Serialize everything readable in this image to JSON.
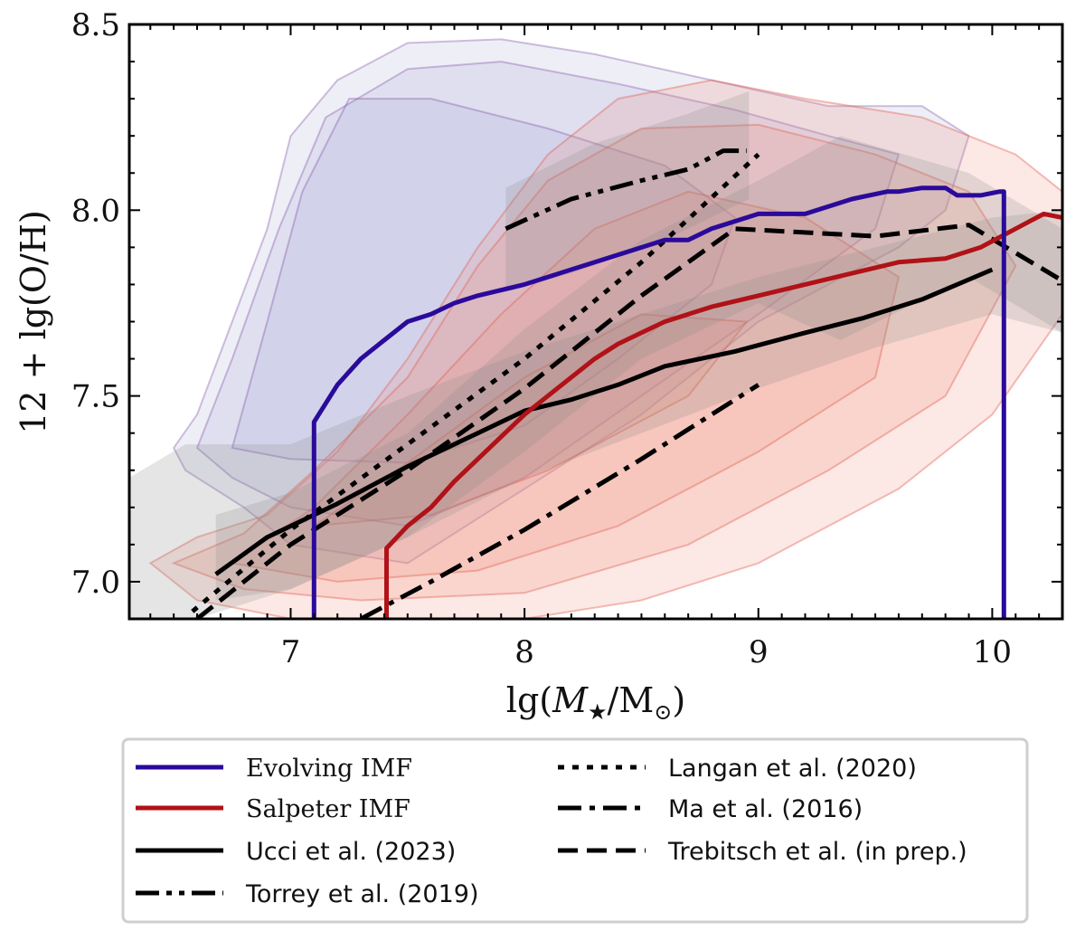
{
  "chart_data": {
    "type": "line",
    "title": "",
    "xlabel": "lg(M★/M⊙)",
    "ylabel": "12 + lg(O/H)",
    "xlim": [
      6.31,
      10.3
    ],
    "ylim": [
      6.9,
      8.5
    ],
    "xticks": [
      7,
      8,
      9,
      10
    ],
    "xtick_labels": [
      "7",
      "8",
      "9",
      "10"
    ],
    "yticks": [
      7.0,
      7.5,
      8.0,
      8.5
    ],
    "ytick_labels": [
      "7.0",
      "7.5",
      "8.0",
      "8.5"
    ],
    "grid": false,
    "legend_position": "below-plot",
    "series": [
      {
        "name": "Evolving IMF",
        "color": "#2a0a9a",
        "style": "solid",
        "x": [
          7.1,
          7.1,
          7.2,
          7.3,
          7.4,
          7.5,
          7.6,
          7.7,
          7.8,
          8.0,
          8.2,
          8.4,
          8.6,
          8.7,
          8.8,
          9.0,
          9.2,
          9.4,
          9.55,
          9.6,
          9.7,
          9.8,
          9.85,
          9.95,
          10.03,
          10.05,
          10.05
        ],
        "y": [
          6.9,
          7.43,
          7.53,
          7.6,
          7.65,
          7.7,
          7.72,
          7.75,
          7.77,
          7.8,
          7.84,
          7.88,
          7.92,
          7.92,
          7.95,
          7.99,
          7.99,
          8.03,
          8.05,
          8.05,
          8.06,
          8.06,
          8.04,
          8.04,
          8.05,
          8.05,
          6.9
        ]
      },
      {
        "name": "Salpeter IMF",
        "color": "#b01218",
        "style": "solid",
        "x": [
          7.41,
          7.41,
          7.5,
          7.6,
          7.7,
          7.8,
          7.9,
          8.0,
          8.1,
          8.2,
          8.3,
          8.4,
          8.5,
          8.6,
          8.8,
          9.0,
          9.2,
          9.4,
          9.6,
          9.8,
          9.95,
          10.1,
          10.22,
          10.3
        ],
        "y": [
          6.9,
          7.09,
          7.15,
          7.2,
          7.27,
          7.33,
          7.39,
          7.45,
          7.5,
          7.55,
          7.6,
          7.64,
          7.67,
          7.7,
          7.74,
          7.77,
          7.8,
          7.83,
          7.86,
          7.87,
          7.9,
          7.95,
          7.99,
          7.98
        ]
      },
      {
        "name": "Ucci et al. (2023)",
        "color": "#000000",
        "style": "solid",
        "x": [
          6.68,
          6.9,
          7.2,
          7.5,
          7.8,
          8.0,
          8.2,
          8.4,
          8.6,
          8.9,
          9.2,
          9.45,
          9.7,
          10.0
        ],
        "y": [
          7.02,
          7.12,
          7.21,
          7.31,
          7.4,
          7.46,
          7.49,
          7.53,
          7.58,
          7.62,
          7.67,
          7.71,
          7.76,
          7.84
        ]
      },
      {
        "name": "Torrey et al. (2019)",
        "color": "#000000",
        "style": "dashdotdot",
        "x": [
          7.92,
          8.2,
          8.5,
          8.7,
          8.85,
          8.95
        ],
        "y": [
          7.95,
          8.03,
          8.08,
          8.11,
          8.16,
          8.16
        ]
      },
      {
        "name": "Langan et al. (2020)",
        "color": "#000000",
        "style": "dotted",
        "x": [
          6.58,
          7.0,
          7.5,
          8.0,
          8.5,
          9.0
        ],
        "y": [
          6.92,
          7.14,
          7.37,
          7.6,
          7.86,
          8.15
        ]
      },
      {
        "name": "Ma et al. (2016)",
        "color": "#000000",
        "style": "dashdot",
        "x": [
          7.3,
          7.6,
          8.0,
          8.5,
          9.0
        ],
        "y": [
          6.9,
          7.0,
          7.14,
          7.33,
          7.53
        ]
      },
      {
        "name": "Trebitsch et al. (in prep.)",
        "color": "#000000",
        "style": "dashed",
        "x": [
          6.6,
          7.0,
          7.5,
          8.0,
          8.5,
          8.9,
          9.5,
          9.9,
          10.3
        ],
        "y": [
          6.9,
          7.1,
          7.3,
          7.52,
          7.77,
          7.95,
          7.93,
          7.96,
          7.81
        ]
      }
    ],
    "bands": [
      {
        "name": "Ucci et al. (2023) range",
        "color": "#a0a0a0",
        "x": [
          6.31,
          6.68,
          7.0,
          7.5,
          8.0,
          8.5,
          9.0,
          9.5,
          10.0,
          10.3,
          10.3,
          10.0,
          9.5,
          9.0,
          8.5,
          8.0,
          7.5,
          7.0,
          6.68,
          6.31
        ],
        "upper": [
          7.28,
          7.38,
          7.38,
          7.45,
          7.56,
          7.64,
          7.74,
          7.82,
          7.92,
          7.98,
          7.98,
          7.92,
          7.82,
          7.74,
          7.64,
          7.56,
          7.45,
          7.38,
          7.38,
          7.28
        ],
        "lower": []
      }
    ],
    "legend": [
      {
        "label": "Evolving IMF",
        "color": "#2a0a9a",
        "style": "solid"
      },
      {
        "label": "Salpeter IMF",
        "color": "#b01218",
        "style": "solid"
      },
      {
        "label": "Ucci et al. (2023)",
        "color": "#000000",
        "style": "solid"
      },
      {
        "label": "Torrey et al. (2019)",
        "color": "#000000",
        "style": "dashdotdot"
      },
      {
        "label": "Langan et al. (2020)",
        "color": "#000000",
        "style": "dotted"
      },
      {
        "label": "Ma et al. (2016)",
        "color": "#000000",
        "style": "dashdot"
      },
      {
        "label": "Trebitsch et al. (in prep.)",
        "color": "#000000",
        "style": "dashed"
      }
    ],
    "contours": {
      "evolving": {
        "color": "#8a88c8",
        "edge": "#7a4aa0"
      },
      "salpeter": {
        "color": "#f08a78",
        "edge": "#e06050"
      }
    }
  }
}
